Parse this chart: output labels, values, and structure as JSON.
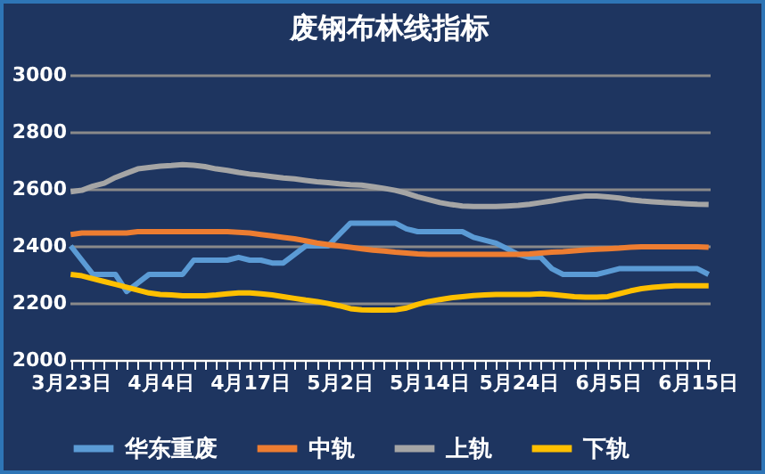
{
  "chart_data": {
    "type": "line",
    "title": "废钢布林线指标",
    "categories": [
      "3月23日",
      null,
      null,
      null,
      null,
      null,
      null,
      null,
      "4月4日",
      null,
      null,
      null,
      null,
      null,
      null,
      null,
      "4月17日",
      null,
      null,
      null,
      null,
      null,
      null,
      null,
      "5月2日",
      null,
      null,
      null,
      null,
      null,
      null,
      null,
      "5月14日",
      null,
      null,
      null,
      null,
      null,
      null,
      null,
      "5月24日",
      null,
      null,
      null,
      null,
      null,
      null,
      null,
      "6月5日",
      null,
      null,
      null,
      null,
      null,
      null,
      null,
      "6月15日",
      null
    ],
    "series": [
      {
        "name": "华东重废",
        "color": "#5b9bd5",
        "values": [
          2400,
          2350,
          2300,
          2300,
          2300,
          2240,
          2270,
          2300,
          2300,
          2300,
          2300,
          2350,
          2350,
          2350,
          2350,
          2360,
          2350,
          2350,
          2340,
          2340,
          2370,
          2400,
          2400,
          2400,
          2440,
          2480,
          2480,
          2480,
          2480,
          2480,
          2460,
          2450,
          2450,
          2450,
          2450,
          2450,
          2430,
          2420,
          2410,
          2390,
          2370,
          2360,
          2360,
          2320,
          2300,
          2300,
          2300,
          2300,
          2310,
          2320,
          2320,
          2320,
          2320,
          2320,
          2320,
          2320,
          2320,
          2300
        ]
      },
      {
        "name": "中轨",
        "color": "#ed7d31",
        "values": [
          2440,
          2445,
          2445,
          2445,
          2445,
          2445,
          2450,
          2450,
          2450,
          2450,
          2450,
          2450,
          2450,
          2450,
          2450,
          2448,
          2445,
          2440,
          2435,
          2430,
          2425,
          2418,
          2410,
          2405,
          2400,
          2395,
          2390,
          2385,
          2382,
          2378,
          2375,
          2372,
          2370,
          2370,
          2370,
          2370,
          2370,
          2370,
          2370,
          2370,
          2370,
          2372,
          2375,
          2378,
          2380,
          2383,
          2386,
          2388,
          2390,
          2392,
          2395,
          2397,
          2397,
          2397,
          2397,
          2397,
          2397,
          2395
        ]
      },
      {
        "name": "上轨",
        "color": "#a5a5a5",
        "values": [
          2590,
          2595,
          2610,
          2620,
          2640,
          2655,
          2670,
          2675,
          2680,
          2682,
          2685,
          2683,
          2678,
          2670,
          2665,
          2658,
          2652,
          2648,
          2643,
          2638,
          2635,
          2630,
          2625,
          2622,
          2618,
          2615,
          2613,
          2608,
          2602,
          2595,
          2585,
          2572,
          2562,
          2552,
          2545,
          2540,
          2538,
          2538,
          2538,
          2540,
          2542,
          2546,
          2552,
          2558,
          2565,
          2570,
          2575,
          2575,
          2572,
          2568,
          2562,
          2558,
          2555,
          2552,
          2550,
          2548,
          2546,
          2545
        ]
      },
      {
        "name": "下轨",
        "color": "#ffc000",
        "values": [
          2300,
          2295,
          2285,
          2275,
          2265,
          2255,
          2245,
          2235,
          2230,
          2228,
          2225,
          2225,
          2225,
          2228,
          2232,
          2235,
          2235,
          2232,
          2228,
          2222,
          2216,
          2210,
          2205,
          2198,
          2190,
          2180,
          2176,
          2175,
          2175,
          2176,
          2182,
          2195,
          2205,
          2212,
          2218,
          2222,
          2226,
          2228,
          2230,
          2230,
          2230,
          2230,
          2232,
          2230,
          2226,
          2222,
          2220,
          2220,
          2222,
          2232,
          2242,
          2250,
          2255,
          2258,
          2260,
          2260,
          2260,
          2260
        ]
      }
    ],
    "ylim": [
      2000,
      3000
    ],
    "yticks": [
      2000,
      2200,
      2400,
      2600,
      2800,
      3000
    ],
    "grid": "y",
    "legend": "bottom",
    "line_style": "solid"
  }
}
